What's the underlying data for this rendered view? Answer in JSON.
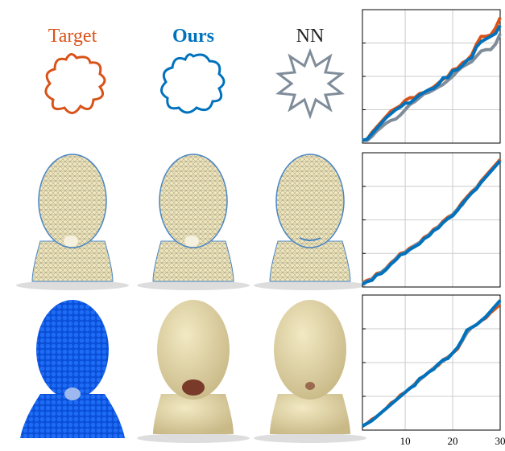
{
  "columns": [
    {
      "label": "Target",
      "color": "#d95319"
    },
    {
      "label": "Ours",
      "color": "#0072bd"
    },
    {
      "label": "NN",
      "color": "#222222"
    }
  ],
  "chart_data": [
    {
      "type": "line",
      "x": [
        1,
        2,
        3,
        4,
        5,
        6,
        7,
        8,
        9,
        10,
        11,
        12,
        13,
        14,
        15,
        16,
        17,
        18,
        19,
        20,
        21,
        22,
        23,
        24,
        25,
        26,
        27,
        28,
        29,
        30
      ],
      "xlim": [
        1,
        30
      ],
      "xticks": [
        10,
        20,
        30
      ],
      "ylim": [
        0,
        1
      ],
      "yticks": [
        0.25,
        0.5,
        0.75
      ],
      "grid": true,
      "series": [
        {
          "color": "#d95319",
          "values": [
            0.02,
            0.03,
            0.08,
            0.12,
            0.16,
            0.2,
            0.24,
            0.26,
            0.28,
            0.32,
            0.34,
            0.34,
            0.37,
            0.38,
            0.4,
            0.42,
            0.45,
            0.48,
            0.5,
            0.55,
            0.56,
            0.6,
            0.62,
            0.66,
            0.74,
            0.8,
            0.8,
            0.81,
            0.86,
            0.94
          ]
        },
        {
          "color": "#7f8c99",
          "values": [
            0.02,
            0.02,
            0.05,
            0.09,
            0.12,
            0.15,
            0.17,
            0.18,
            0.21,
            0.25,
            0.29,
            0.31,
            0.34,
            0.37,
            0.38,
            0.4,
            0.42,
            0.44,
            0.47,
            0.5,
            0.54,
            0.57,
            0.59,
            0.61,
            0.65,
            0.69,
            0.7,
            0.7,
            0.74,
            0.82
          ]
        },
        {
          "color": "#0072bd",
          "values": [
            0.02,
            0.03,
            0.07,
            0.11,
            0.15,
            0.19,
            0.22,
            0.25,
            0.27,
            0.3,
            0.3,
            0.33,
            0.36,
            0.38,
            0.4,
            0.41,
            0.44,
            0.49,
            0.49,
            0.54,
            0.55,
            0.58,
            0.62,
            0.64,
            0.72,
            0.76,
            0.78,
            0.8,
            0.82,
            0.88
          ]
        }
      ]
    },
    {
      "type": "line",
      "x": [
        1,
        2,
        3,
        4,
        5,
        6,
        7,
        8,
        9,
        10,
        11,
        12,
        13,
        14,
        15,
        16,
        17,
        18,
        19,
        20,
        21,
        22,
        23,
        24,
        25,
        26,
        27,
        28,
        29,
        30
      ],
      "xlim": [
        1,
        30
      ],
      "xticks": [
        10,
        20,
        30
      ],
      "ylim": [
        0,
        1
      ],
      "yticks": [
        0.25,
        0.5,
        0.75
      ],
      "grid": true,
      "series": [
        {
          "color": "#d95319",
          "values": [
            0.03,
            0.05,
            0.06,
            0.1,
            0.11,
            0.14,
            0.18,
            0.21,
            0.25,
            0.26,
            0.29,
            0.31,
            0.33,
            0.37,
            0.39,
            0.43,
            0.45,
            0.49,
            0.52,
            0.54,
            0.58,
            0.63,
            0.67,
            0.71,
            0.74,
            0.79,
            0.83,
            0.87,
            0.91,
            0.95
          ]
        },
        {
          "color": "#7f8c99",
          "values": [
            0.03,
            0.04,
            0.06,
            0.09,
            0.11,
            0.14,
            0.17,
            0.21,
            0.24,
            0.26,
            0.28,
            0.31,
            0.33,
            0.36,
            0.39,
            0.42,
            0.45,
            0.48,
            0.51,
            0.54,
            0.58,
            0.61,
            0.66,
            0.7,
            0.74,
            0.78,
            0.82,
            0.86,
            0.9,
            0.94
          ]
        },
        {
          "color": "#0072bd",
          "values": [
            0.02,
            0.04,
            0.05,
            0.09,
            0.1,
            0.13,
            0.17,
            0.2,
            0.24,
            0.25,
            0.28,
            0.3,
            0.32,
            0.36,
            0.38,
            0.42,
            0.44,
            0.48,
            0.51,
            0.53,
            0.57,
            0.62,
            0.66,
            0.7,
            0.73,
            0.78,
            0.82,
            0.86,
            0.9,
            0.94
          ]
        }
      ]
    },
    {
      "type": "line",
      "x": [
        1,
        2,
        3,
        4,
        5,
        6,
        7,
        8,
        9,
        10,
        11,
        12,
        13,
        14,
        15,
        16,
        17,
        18,
        19,
        20,
        21,
        22,
        23,
        24,
        25,
        26,
        27,
        28,
        29,
        30
      ],
      "xlim": [
        1,
        30
      ],
      "xticks": [
        10,
        20,
        30
      ],
      "ylim": [
        0,
        1
      ],
      "yticks": [
        0.25,
        0.5,
        0.75
      ],
      "grid": true,
      "series": [
        {
          "color": "#d95319",
          "values": [
            0.03,
            0.05,
            0.08,
            0.1,
            0.13,
            0.16,
            0.2,
            0.22,
            0.26,
            0.28,
            0.31,
            0.34,
            0.38,
            0.4,
            0.43,
            0.46,
            0.48,
            0.52,
            0.54,
            0.57,
            0.6,
            0.66,
            0.74,
            0.76,
            0.78,
            0.81,
            0.83,
            0.87,
            0.9,
            0.93
          ]
        },
        {
          "color": "#7f8c99",
          "values": [
            0.03,
            0.05,
            0.07,
            0.1,
            0.13,
            0.16,
            0.19,
            0.22,
            0.25,
            0.28,
            0.31,
            0.34,
            0.37,
            0.4,
            0.43,
            0.46,
            0.49,
            0.51,
            0.54,
            0.57,
            0.61,
            0.66,
            0.72,
            0.76,
            0.78,
            0.81,
            0.84,
            0.88,
            0.92,
            0.95
          ]
        },
        {
          "color": "#0072bd",
          "values": [
            0.03,
            0.05,
            0.07,
            0.1,
            0.13,
            0.16,
            0.19,
            0.22,
            0.25,
            0.28,
            0.31,
            0.33,
            0.38,
            0.4,
            0.43,
            0.45,
            0.49,
            0.52,
            0.53,
            0.57,
            0.61,
            0.67,
            0.74,
            0.76,
            0.78,
            0.81,
            0.84,
            0.88,
            0.92,
            0.96
          ]
        }
      ]
    }
  ]
}
